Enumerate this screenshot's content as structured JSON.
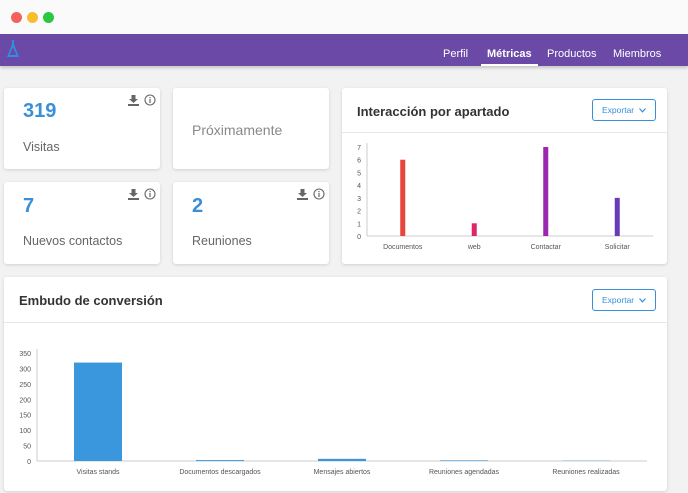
{
  "window": {
    "controls": [
      "close",
      "minimize",
      "maximize"
    ]
  },
  "navbar": {
    "logo_icon": "app-logo-icon",
    "items": [
      {
        "label": "Perfil",
        "active": false
      },
      {
        "label": "Métricas",
        "active": true
      },
      {
        "label": "Productos",
        "active": false
      },
      {
        "label": "Miembros",
        "active": false
      }
    ]
  },
  "stats": [
    {
      "value": "319",
      "label": "Visitas"
    },
    {
      "value": "7",
      "label": "Nuevos contactos"
    },
    {
      "value": "2",
      "label": "Reuniones"
    }
  ],
  "placeholder_card": {
    "label": "Próximamente"
  },
  "icons": {
    "download": "download-icon",
    "info": "info-icon",
    "chevron": "chevron-down-icon"
  },
  "colors": {
    "brand": "#6a4aa6",
    "accent": "#3a8fd9",
    "bars": [
      "#e8453c",
      "#e0246a",
      "#9b27b0",
      "#673ab7"
    ],
    "funnel": "#3a97dd"
  },
  "chart_data": [
    {
      "type": "bar",
      "title": "Interacción por apartado",
      "export_label": "Exportar",
      "categories": [
        "Documentos",
        "web",
        "Contactar",
        "Solicitar"
      ],
      "values": [
        6,
        1,
        7,
        3
      ],
      "ylim": [
        0,
        7
      ],
      "yticks": [
        0,
        1,
        2,
        3,
        4,
        5,
        6,
        7
      ],
      "grid": false,
      "legend": "none"
    },
    {
      "type": "bar",
      "title": "Embudo de conversión",
      "export_label": "Exportar",
      "categories": [
        "Visitas stands",
        "Documentos descargados",
        "Mensajes abiertos",
        "Reuniones agendadas",
        "Reuniones realizadas"
      ],
      "values": [
        319,
        3,
        7,
        2,
        1
      ],
      "ylim": [
        0,
        350
      ],
      "yticks": [
        0,
        50,
        100,
        150,
        200,
        250,
        300,
        350
      ],
      "grid": false,
      "legend": "none"
    }
  ]
}
